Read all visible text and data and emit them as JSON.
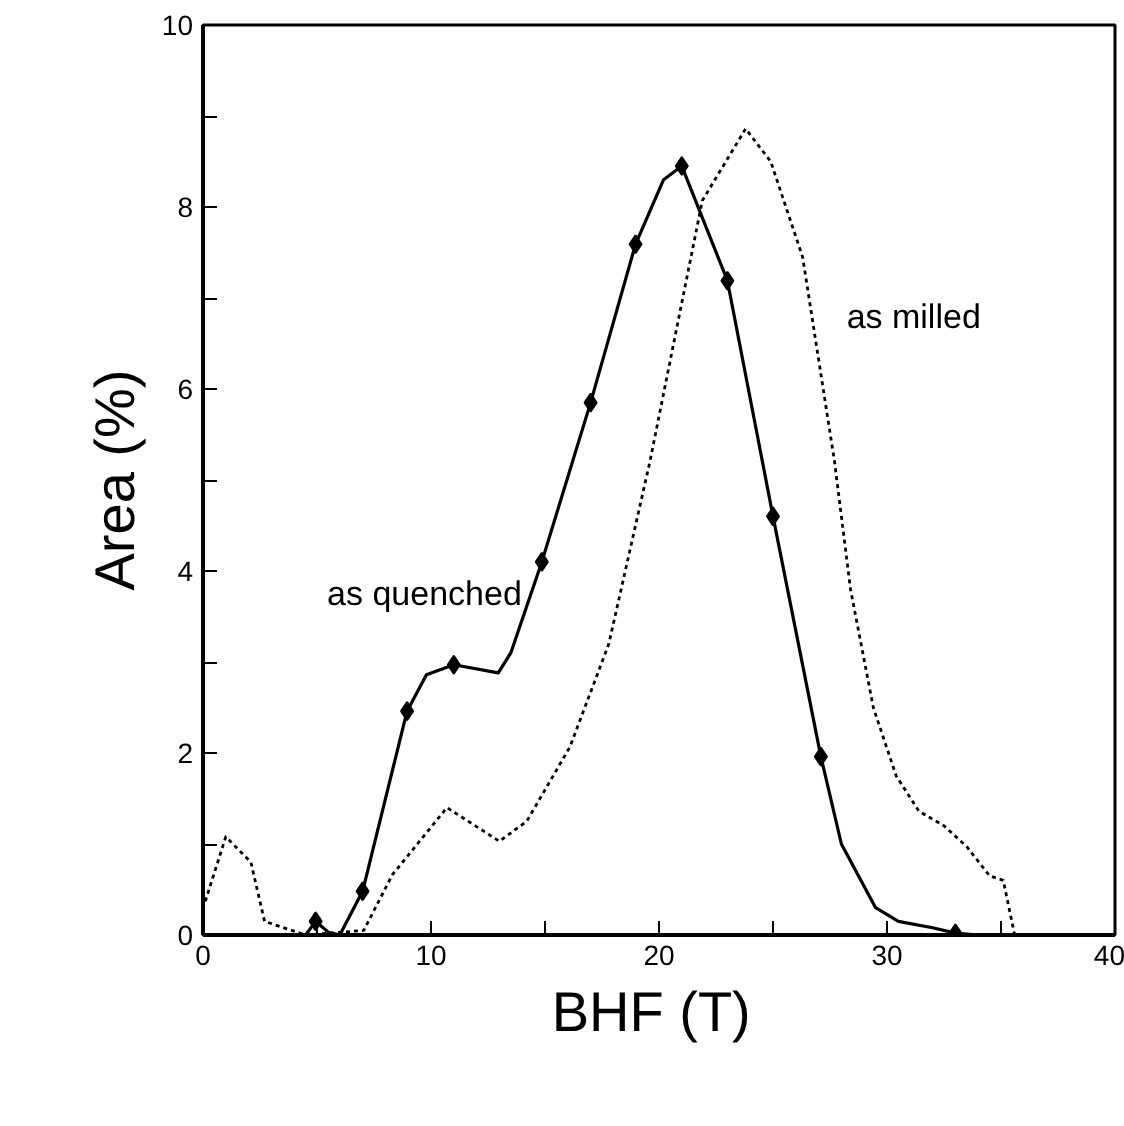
{
  "chart_data": {
    "type": "line",
    "xlabel": "BHF  (T)",
    "ylabel": "Area (%)",
    "xlim": [
      0,
      40
    ],
    "ylim": [
      0,
      10
    ],
    "xticks": [
      0,
      {
        "value": 5,
        "label": null
      },
      10,
      {
        "value": 15,
        "label": null
      },
      20,
      {
        "value": 25,
        "label": null
      },
      30,
      {
        "value": 35,
        "label": null
      },
      40
    ],
    "yticks": [
      0,
      {
        "value": 1,
        "label": null
      },
      2,
      {
        "value": 3,
        "label": null
      },
      4,
      {
        "value": 5,
        "label": null
      },
      6,
      {
        "value": 7,
        "label": null
      },
      8,
      {
        "value": 9,
        "label": null
      },
      10
    ],
    "grid": false,
    "series": [
      {
        "name": "as quenched",
        "line_style": "solid",
        "color": "#000000",
        "x": [
          4.5,
          4.94,
          5.5,
          6.0,
          7.0,
          8.95,
          9.8,
          11.0,
          12.95,
          13.5,
          14.86,
          17.0,
          18.97,
          20.2,
          21.0,
          23.0,
          25.0,
          27.1,
          28.0,
          29.5,
          30.5,
          32.0,
          33.0,
          34.0
        ],
        "values": [
          0,
          0.15,
          0.03,
          0,
          0.48,
          2.46,
          2.86,
          2.97,
          2.88,
          3.1,
          4.1,
          5.85,
          7.59,
          8.3,
          8.45,
          7.19,
          4.6,
          1.96,
          1.0,
          0.3,
          0.15,
          0.08,
          0.02,
          0
        ]
      },
      {
        "type": "scatter",
        "marker": "diamond",
        "color": "#000000",
        "x": [
          4.94,
          7.0,
          8.95,
          11.0,
          14.86,
          17.0,
          18.97,
          21.0,
          23.0,
          25.0,
          27.1,
          33.0
        ],
        "values": [
          0.15,
          0.48,
          2.46,
          2.97,
          4.1,
          5.85,
          7.59,
          8.45,
          7.19,
          4.6,
          1.96,
          0.02
        ]
      },
      {
        "name": "as milled",
        "line_style": "dotted",
        "color": "#000000",
        "x": [
          0.1,
          1.0,
          2.1,
          2.7,
          4.5,
          7.05,
          8.3,
          10.7,
          13.0,
          14.2,
          16.1,
          17.8,
          19.6,
          21.9,
          23.8,
          24.9,
          26.3,
          27.7,
          28.4,
          29.4,
          30.4,
          31.4,
          32.5,
          33.5,
          34.5,
          35.1,
          35.6
        ],
        "values": [
          0.37,
          1.08,
          0.8,
          0.15,
          0,
          0.05,
          0.66,
          1.4,
          1.03,
          1.25,
          2.07,
          3.2,
          5.2,
          8.07,
          8.86,
          8.5,
          7.45,
          5.2,
          3.8,
          2.5,
          1.75,
          1.36,
          1.2,
          0.97,
          0.65,
          0.6,
          0
        ]
      }
    ]
  }
}
